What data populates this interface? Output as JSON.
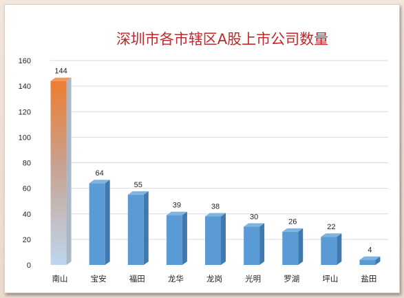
{
  "chart_data": {
    "type": "bar",
    "title": "深圳市各市辖区A股上市公司数量",
    "categories": [
      "南山",
      "宝安",
      "福田",
      "龙华",
      "龙岗",
      "光明",
      "罗湖",
      "坪山",
      "盐田"
    ],
    "values": [
      144,
      64,
      55,
      39,
      38,
      30,
      26,
      22,
      4
    ],
    "ylim": [
      0,
      160
    ],
    "yticks": [
      0,
      20,
      40,
      60,
      80,
      100,
      120,
      140,
      160
    ],
    "grid": true,
    "legend": "none",
    "colors": {
      "bar_front": "#5b9bd5",
      "bar_side": "#3f79ad",
      "bar_top": "#7fb3e0",
      "highlight_top": "#ed7d31",
      "highlight_bottom": "#bdd7ee",
      "title": "#c0282a"
    }
  }
}
